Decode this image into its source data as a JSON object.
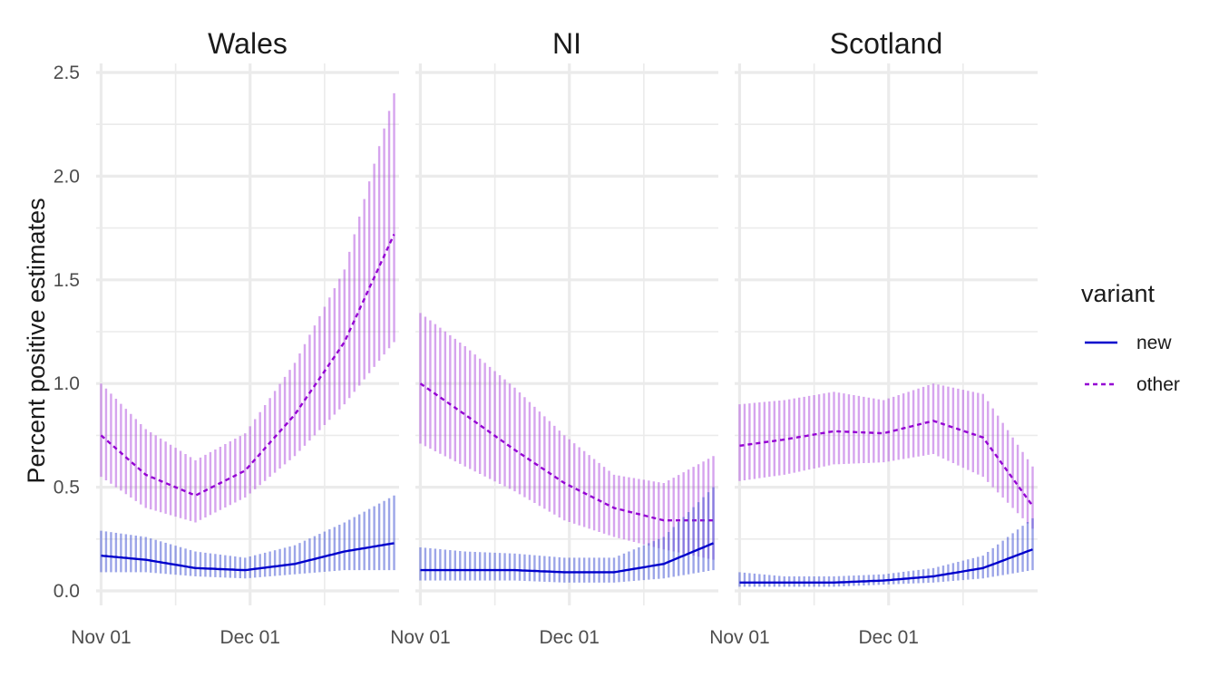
{
  "chart_data": {
    "type": "line",
    "ylabel": "Percent positive estimates",
    "xlabel": "",
    "ylim": [
      0,
      2.5
    ],
    "y_ticks": [
      "0.0",
      "0.5",
      "1.0",
      "1.5",
      "2.0",
      "2.5"
    ],
    "x_ticks": [
      "Nov 01",
      "Dec 01"
    ],
    "date_range": [
      "2020-11-01",
      "2020-12-30"
    ],
    "legend": {
      "title": "variant",
      "entries": [
        {
          "label": "new",
          "color": "#0000cc",
          "dash": "solid"
        },
        {
          "label": "other",
          "color": "#9400d3",
          "dash": "dashed"
        }
      ]
    },
    "colors": {
      "new": "#0000cc",
      "other": "#9400d3",
      "band_new": "#4b5bd6",
      "band_other": "#b45ae0"
    },
    "panels": [
      {
        "title": "Wales",
        "x": [
          "2020-11-01",
          "2020-11-10",
          "2020-11-20",
          "2020-11-30",
          "2020-12-10",
          "2020-12-20",
          "2020-12-30"
        ],
        "series": [
          {
            "name": "new",
            "values": [
              0.17,
              0.15,
              0.11,
              0.1,
              0.13,
              0.19,
              0.23
            ],
            "lower": [
              0.09,
              0.09,
              0.07,
              0.06,
              0.08,
              0.1,
              0.1
            ],
            "upper": [
              0.29,
              0.26,
              0.19,
              0.16,
              0.22,
              0.33,
              0.46
            ]
          },
          {
            "name": "other",
            "values": [
              0.75,
              0.56,
              0.46,
              0.58,
              0.85,
              1.2,
              1.72
            ],
            "lower": [
              0.55,
              0.4,
              0.33,
              0.45,
              0.65,
              0.9,
              1.2
            ],
            "upper": [
              1.0,
              0.78,
              0.63,
              0.76,
              1.1,
              1.55,
              2.4
            ]
          }
        ]
      },
      {
        "title": "NI",
        "x": [
          "2020-11-01",
          "2020-11-10",
          "2020-11-20",
          "2020-11-30",
          "2020-12-10",
          "2020-12-20",
          "2020-12-30"
        ],
        "series": [
          {
            "name": "new",
            "values": [
              0.1,
              0.1,
              0.1,
              0.09,
              0.09,
              0.13,
              0.23
            ],
            "lower": [
              0.05,
              0.05,
              0.05,
              0.04,
              0.04,
              0.06,
              0.1
            ],
            "upper": [
              0.21,
              0.19,
              0.18,
              0.16,
              0.16,
              0.26,
              0.5
            ]
          },
          {
            "name": "other",
            "values": [
              1.0,
              0.85,
              0.68,
              0.52,
              0.4,
              0.34,
              0.34
            ],
            "lower": [
              0.71,
              0.6,
              0.48,
              0.34,
              0.26,
              0.2,
              0.15
            ],
            "upper": [
              1.34,
              1.18,
              0.98,
              0.75,
              0.56,
              0.52,
              0.65
            ]
          }
        ]
      },
      {
        "title": "Scotland",
        "x": [
          "2020-11-01",
          "2020-11-10",
          "2020-11-20",
          "2020-11-30",
          "2020-12-10",
          "2020-12-20",
          "2020-12-30"
        ],
        "series": [
          {
            "name": "new",
            "values": [
              0.04,
              0.04,
              0.04,
              0.05,
              0.07,
              0.11,
              0.2
            ],
            "lower": [
              0.02,
              0.02,
              0.02,
              0.03,
              0.04,
              0.06,
              0.1
            ],
            "upper": [
              0.09,
              0.07,
              0.07,
              0.08,
              0.11,
              0.17,
              0.35
            ]
          },
          {
            "name": "other",
            "values": [
              0.7,
              0.73,
              0.77,
              0.76,
              0.82,
              0.74,
              0.41
            ],
            "lower": [
              0.53,
              0.56,
              0.61,
              0.62,
              0.66,
              0.55,
              0.3
            ],
            "upper": [
              0.9,
              0.92,
              0.96,
              0.92,
              1.0,
              0.95,
              0.6
            ]
          }
        ]
      }
    ]
  }
}
